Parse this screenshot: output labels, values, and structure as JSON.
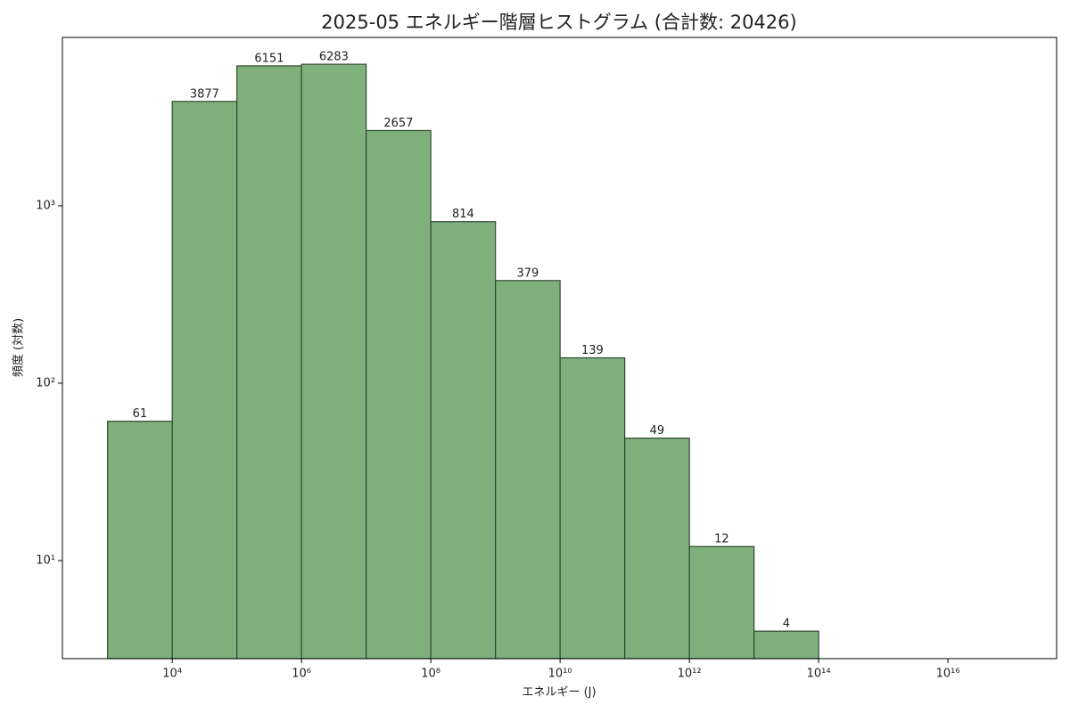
{
  "chart_data": {
    "type": "histogram",
    "title": "2025-05 エネルギー階層ヒストグラム (合計数: 20426)",
    "x_label": "エネルギー (J)",
    "y_label": "頻度 (対数)",
    "bins": [
      1000.0,
      10000.0,
      100000.0,
      1000000.0,
      10000000.0,
      100000000.0,
      1000000000.0,
      10000000000.0,
      100000000000.0,
      1000000000000.0,
      10000000000000.0,
      100000000000000.0
    ],
    "values": [
      61,
      3877,
      6151,
      6283,
      2657,
      814,
      379,
      139,
      49,
      12,
      4
    ],
    "color": "#80b07c",
    "edge_color": "#2f4a2f",
    "x_scale": "log",
    "y_scale": "log",
    "xlim": [
      200,
      4.8e+17
    ],
    "xticks": [
      {
        "value": 10000.0,
        "label": "10⁴"
      },
      {
        "value": 1000000.0,
        "label": "10⁶"
      },
      {
        "value": 100000000.0,
        "label": "10⁸"
      },
      {
        "value": 10000000000.0,
        "label": "10¹⁰"
      },
      {
        "value": 1000000000000.0,
        "label": "10¹²"
      },
      {
        "value": 100000000000000.0,
        "label": "10¹⁴"
      },
      {
        "value": 1e+16,
        "label": "10¹⁶"
      }
    ],
    "ylim": [
      2.8,
      8900
    ],
    "yticks": [
      {
        "value": 10,
        "label": "10¹"
      },
      {
        "value": 100,
        "label": "10²"
      },
      {
        "value": 1000,
        "label": "10³"
      }
    ]
  }
}
